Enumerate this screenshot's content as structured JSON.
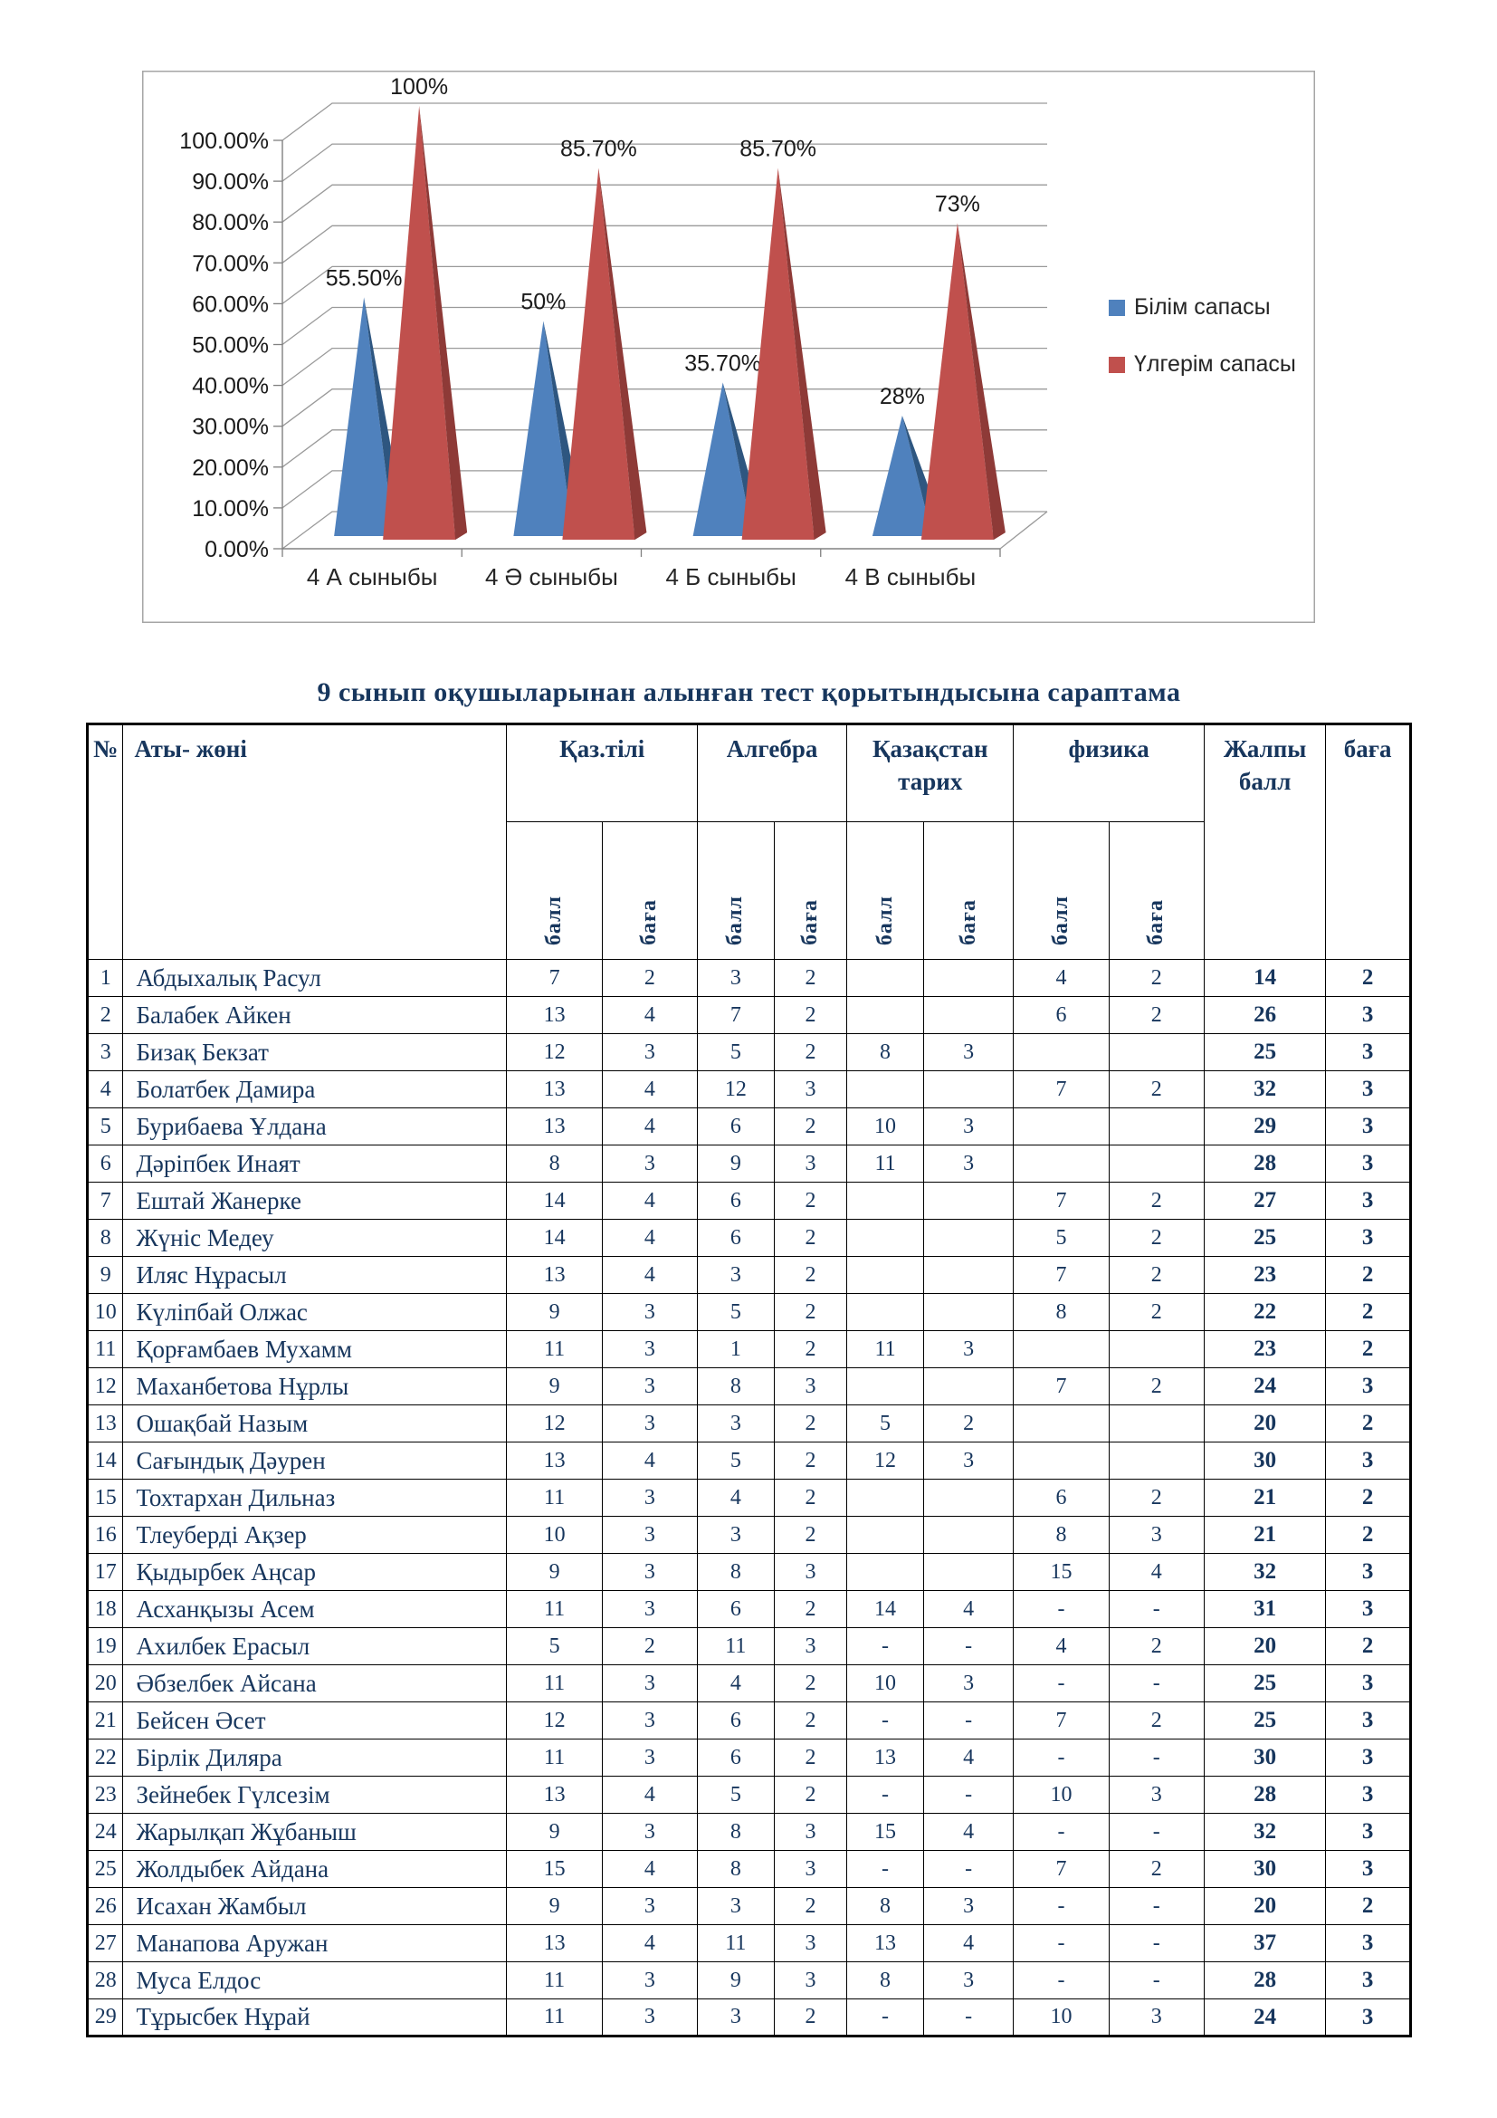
{
  "chart_data": {
    "type": "bar",
    "subtype": "pyramid-3d",
    "title": "",
    "xlabel": "",
    "ylabel": "",
    "categories": [
      "4 А сыныбы",
      "4 Ә сыныбы",
      "4 Б сыныбы",
      "4 В сыныбы"
    ],
    "series": [
      {
        "name": "Білім сапасы",
        "color": "#4f81bd",
        "color_dark": "#2e5680",
        "values": [
          55.5,
          50,
          35.7,
          28
        ],
        "labels": [
          "55.50%",
          "50%",
          "35.70%",
          "28%"
        ]
      },
      {
        "name": "Үлгерім сапасы",
        "color": "#c0504d",
        "color_dark": "#8e3a37",
        "values": [
          100,
          85.7,
          85.7,
          73
        ],
        "labels": [
          "100%",
          "85.70%",
          "85.70%",
          "73%"
        ]
      }
    ],
    "ylim": [
      0,
      100
    ],
    "ytick_labels": [
      "0.00%",
      "10.00%",
      "20.00%",
      "30.00%",
      "40.00%",
      "50.00%",
      "60.00%",
      "70.00%",
      "80.00%",
      "90.00%",
      "100.00%"
    ],
    "grid": true,
    "legend_position": "right"
  },
  "table": {
    "title": "9 сынып  оқушыларынан алынған тест қорытындысына сараптама",
    "header": {
      "no_label": "№",
      "name_label": "Аты- жөні",
      "groups": [
        "Қаз.тілі",
        "Алгебра",
        "Қазақстан тарих",
        "физика"
      ],
      "sub_labels": [
        "балл",
        "баға"
      ],
      "total_label": "Жалпы балл",
      "grade_label": "баға"
    },
    "rows": [
      {
        "no": "1",
        "name": "Абдыхалық Расул",
        "scores": [
          "7",
          "2",
          "3",
          "2",
          "",
          "",
          "4",
          "2"
        ],
        "total": "14",
        "grade": "2"
      },
      {
        "no": "2",
        "name": "Балабек Айкен",
        "scores": [
          "13",
          "4",
          "7",
          "2",
          "",
          "",
          "6",
          "2"
        ],
        "total": "26",
        "grade": "3"
      },
      {
        "no": "3",
        "name": "Бизақ Бекзат",
        "scores": [
          "12",
          "3",
          "5",
          "2",
          "8",
          "3",
          "",
          ""
        ],
        "total": "25",
        "grade": "3"
      },
      {
        "no": "4",
        "name": "Болатбек Дамира",
        "scores": [
          "13",
          "4",
          "12",
          "3",
          "",
          "",
          "7",
          "2"
        ],
        "total": "32",
        "grade": "3"
      },
      {
        "no": "5",
        "name": "Бурибаева Ұлдана",
        "scores": [
          "13",
          "4",
          "6",
          "2",
          "10",
          "3",
          "",
          ""
        ],
        "total": "29",
        "grade": "3"
      },
      {
        "no": "6",
        "name": "Дәріпбек Инаят",
        "scores": [
          "8",
          "3",
          "9",
          "3",
          "11",
          "3",
          "",
          ""
        ],
        "total": "28",
        "grade": "3"
      },
      {
        "no": "7",
        "name": "Ештай Жанерке",
        "scores": [
          "14",
          "4",
          "6",
          "2",
          "",
          "",
          "7",
          "2"
        ],
        "total": "27",
        "grade": "3"
      },
      {
        "no": "8",
        "name": "Жүніс Медеу",
        "scores": [
          "14",
          "4",
          "6",
          "2",
          "",
          "",
          "5",
          "2"
        ],
        "total": "25",
        "grade": "3"
      },
      {
        "no": "9",
        "name": "Иляс Нұрасыл",
        "scores": [
          "13",
          "4",
          "3",
          "2",
          "",
          "",
          "7",
          "2"
        ],
        "total": "23",
        "grade": "2"
      },
      {
        "no": "10",
        "name": "Күліпбай Олжас",
        "scores": [
          "9",
          "3",
          "5",
          "2",
          "",
          "",
          "8",
          "2"
        ],
        "total": "22",
        "grade": "2"
      },
      {
        "no": "11",
        "name": "Қорғамбаев Мухамм",
        "scores": [
          "11",
          "3",
          "1",
          "2",
          "11",
          "3",
          "",
          ""
        ],
        "total": "23",
        "grade": "2"
      },
      {
        "no": "12",
        "name": "Маханбетова Нұрлы",
        "scores": [
          "9",
          "3",
          "8",
          "3",
          "",
          "",
          "7",
          "2"
        ],
        "total": "24",
        "grade": "3"
      },
      {
        "no": "13",
        "name": "Ошақбай Назым",
        "scores": [
          "12",
          "3",
          "3",
          "2",
          "5",
          "2",
          "",
          ""
        ],
        "total": "20",
        "grade": "2"
      },
      {
        "no": "14",
        "name": "Сағындық Дәурен",
        "scores": [
          "13",
          "4",
          "5",
          "2",
          "12",
          "3",
          "",
          ""
        ],
        "total": "30",
        "grade": "3"
      },
      {
        "no": "15",
        "name": "Тохтархан Дильназ",
        "scores": [
          "11",
          "3",
          "4",
          "2",
          "",
          "",
          "6",
          "2"
        ],
        "total": "21",
        "grade": "2"
      },
      {
        "no": "16",
        "name": "Тлеуберді Ақзер",
        "scores": [
          "10",
          "3",
          "3",
          "2",
          "",
          "",
          "8",
          "3"
        ],
        "total": "21",
        "grade": "2"
      },
      {
        "no": "17",
        "name": "Қыдырбек Аңсар",
        "scores": [
          "9",
          "3",
          "8",
          "3",
          "",
          "",
          "15",
          "4"
        ],
        "total": "32",
        "grade": "3"
      },
      {
        "no": "18",
        "name": "Асханқызы  Асем",
        "scores": [
          "11",
          "3",
          "6",
          "2",
          "14",
          "4",
          "-",
          "-"
        ],
        "total": "31",
        "grade": "3"
      },
      {
        "no": "19",
        "name": "Ахилбек  Ерасыл",
        "scores": [
          "5",
          "2",
          "11",
          "3",
          "-",
          "-",
          "4",
          "2"
        ],
        "total": "20",
        "grade": "2"
      },
      {
        "no": "20",
        "name": "Әбзелбек  Айсана",
        "scores": [
          "11",
          "3",
          "4",
          "2",
          "10",
          "3",
          "-",
          "-"
        ],
        "total": "25",
        "grade": "3"
      },
      {
        "no": "21",
        "name": "Бейсен Әсет",
        "scores": [
          "12",
          "3",
          "6",
          "2",
          "-",
          "-",
          "7",
          "2"
        ],
        "total": "25",
        "grade": "3"
      },
      {
        "no": "22",
        "name": "Бірлік  Диляра",
        "scores": [
          "11",
          "3",
          "6",
          "2",
          "13",
          "4",
          "-",
          "-"
        ],
        "total": "30",
        "grade": "3"
      },
      {
        "no": "23",
        "name": "Зейнебек Гүлсезім",
        "scores": [
          "13",
          "4",
          "5",
          "2",
          "-",
          "-",
          "10",
          "3"
        ],
        "total": "28",
        "grade": "3"
      },
      {
        "no": "24",
        "name": "Жарылқап Жұбаныш",
        "scores": [
          "9",
          "3",
          "8",
          "3",
          "15",
          "4",
          "-",
          "-"
        ],
        "total": "32",
        "grade": "3"
      },
      {
        "no": "25",
        "name": "Жолдыбек Айдана",
        "scores": [
          "15",
          "4",
          "8",
          "3",
          "-",
          "-",
          "7",
          "2"
        ],
        "total": "30",
        "grade": "3"
      },
      {
        "no": "26",
        "name": "Исахан Жамбыл",
        "scores": [
          "9",
          "3",
          "3",
          "2",
          "8",
          "3",
          "-",
          "-"
        ],
        "total": "20",
        "grade": "2"
      },
      {
        "no": "27",
        "name": "Манапова  Аружан",
        "scores": [
          "13",
          "4",
          "11",
          "3",
          "13",
          "4",
          "-",
          "-"
        ],
        "total": "37",
        "grade": "3"
      },
      {
        "no": "28",
        "name": "Муса Елдос",
        "scores": [
          "11",
          "3",
          "9",
          "3",
          "8",
          "3",
          "-",
          "-"
        ],
        "total": "28",
        "grade": "3"
      },
      {
        "no": "29",
        "name": "Тұрысбек Нұрай",
        "scores": [
          "11",
          "3",
          "3",
          "2",
          "-",
          "-",
          "10",
          "3"
        ],
        "total": "24",
        "grade": "3"
      }
    ]
  }
}
